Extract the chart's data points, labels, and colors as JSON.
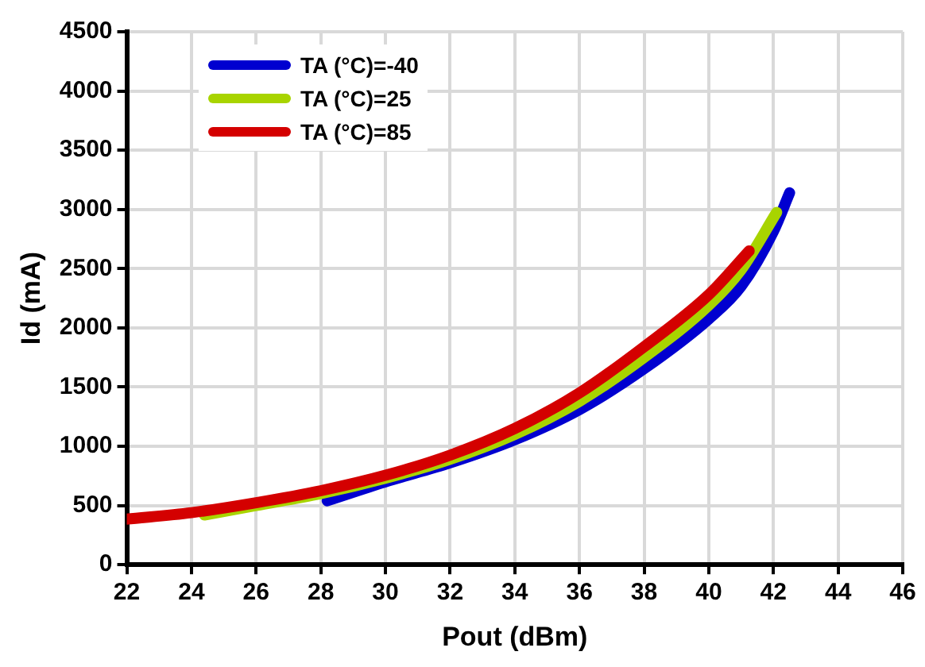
{
  "chart_data": {
    "type": "line",
    "xlabel": "Pout (dBm)",
    "ylabel": "Id (mA)",
    "xlim": [
      22,
      46
    ],
    "xticks": [
      22,
      24,
      26,
      28,
      30,
      32,
      34,
      36,
      38,
      40,
      42,
      44,
      46
    ],
    "ylim": [
      0,
      4500
    ],
    "yticks": [
      0,
      500,
      1000,
      1500,
      2000,
      2500,
      3000,
      3500,
      4000,
      4500
    ],
    "grid": true,
    "legend": "top left",
    "marker": "none",
    "line_style": "solid",
    "series": [
      {
        "name": "TA (°C)=-40",
        "color": "#0000d0",
        "x": [
          28.2,
          30,
          32,
          34,
          36,
          38,
          40,
          41,
          42,
          42.5
        ],
        "values": [
          540,
          700,
          860,
          1055,
          1310,
          1655,
          2075,
          2350,
          2815,
          3140
        ]
      },
      {
        "name": "TA (°C)=25",
        "color": "#a8d400",
        "x": [
          24.4,
          26,
          28,
          30,
          32,
          34,
          36,
          38,
          40,
          41,
          42.1
        ],
        "values": [
          420,
          500,
          600,
          730,
          890,
          1100,
          1380,
          1750,
          2190,
          2490,
          2975
        ]
      },
      {
        "name": "TA (°C)=85",
        "color": "#d40000",
        "x": [
          22,
          24,
          26,
          28,
          30,
          32,
          34,
          36,
          38,
          40,
          41.25
        ],
        "values": [
          385,
          440,
          524,
          625,
          755,
          925,
          1150,
          1450,
          1840,
          2280,
          2650
        ]
      }
    ]
  }
}
